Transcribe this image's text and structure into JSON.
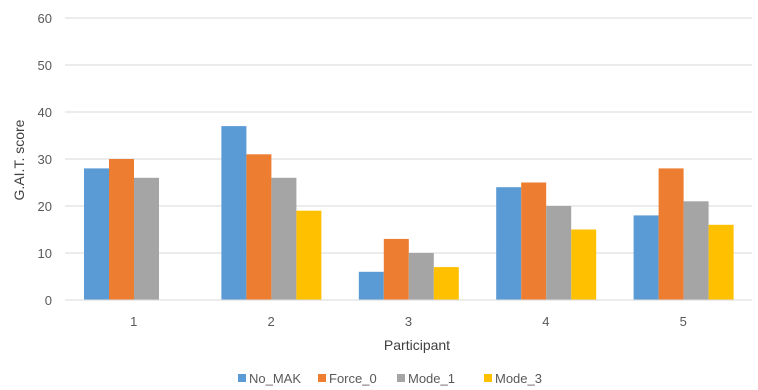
{
  "chart_data": {
    "type": "bar",
    "title": "",
    "xlabel": "Participant",
    "ylabel": "G.AI.T. score",
    "categories": [
      "1",
      "2",
      "3",
      "4",
      "5"
    ],
    "ylim": [
      0,
      60
    ],
    "yticks": [
      0,
      10,
      20,
      30,
      40,
      50,
      60
    ],
    "grid": true,
    "legend_position": "bottom",
    "series": [
      {
        "name": "No_MAK",
        "color": "#5B9BD5",
        "values": [
          28,
          37,
          6,
          24,
          18
        ]
      },
      {
        "name": "Force_0",
        "color": "#ED7D31",
        "values": [
          30,
          31,
          13,
          25,
          28
        ]
      },
      {
        "name": "Mode_1",
        "color": "#A5A5A5",
        "values": [
          26,
          26,
          10,
          20,
          21
        ]
      },
      {
        "name": "Mode_3",
        "color": "#FFC000",
        "values": [
          null,
          19,
          7,
          15,
          16
        ]
      }
    ]
  }
}
